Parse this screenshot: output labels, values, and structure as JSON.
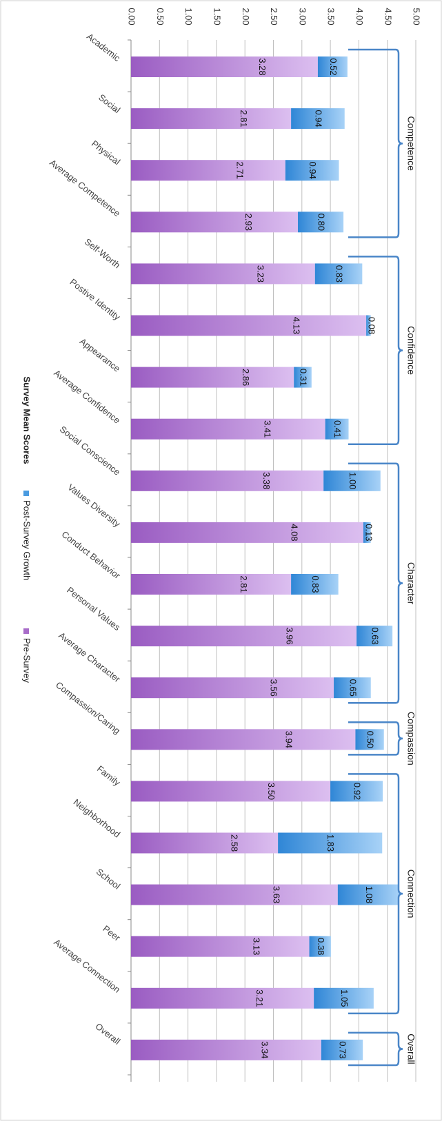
{
  "chart_data": {
    "type": "bar",
    "stacked": true,
    "orientation": "horizontal",
    "categories": [
      "Academic",
      "Social",
      "Physical",
      "Average Competence",
      "Self-Worth",
      "Postive Identity",
      "Appearance",
      "Average Confidence",
      "Social Conscience",
      "Values Diversity",
      "Conduct Behavior",
      "Personal Values",
      "Average Character",
      "Compassion/Caring",
      "Family",
      "Neighborhood",
      "School",
      "Peer",
      "Average Connection",
      "Overall"
    ],
    "series": [
      {
        "name": "Pre-Survey",
        "color": "#a86cc9",
        "values": [
          3.28,
          2.81,
          2.71,
          2.93,
          3.23,
          4.13,
          2.86,
          3.41,
          3.38,
          4.08,
          2.81,
          3.96,
          3.56,
          3.94,
          3.5,
          2.58,
          3.63,
          3.13,
          3.21,
          3.34
        ],
        "labels": [
          "3.28",
          "2.81",
          "2.71",
          "2.93",
          "3.23",
          "4.13",
          "2.86",
          "3.41",
          "3.38",
          "4.08",
          "2.81",
          "3.96",
          "3.56",
          "3.94",
          "3.50",
          "2.58",
          "3.63",
          "3.13",
          "3.21",
          "3.34"
        ]
      },
      {
        "name": "Post-Survey Growth",
        "color": "#4a9be0",
        "values": [
          0.52,
          0.94,
          0.94,
          0.8,
          0.83,
          0.08,
          0.31,
          0.41,
          1.0,
          0.13,
          0.83,
          0.63,
          0.65,
          0.5,
          0.92,
          1.83,
          1.08,
          0.38,
          1.05,
          0.73
        ],
        "labels": [
          "0.52",
          "0.94",
          "0.94",
          "0.80",
          "0.83",
          "0.08",
          "0.31",
          "0.41",
          "1.00",
          "0.13",
          "0.83",
          "0.63",
          "0.65",
          "0.50",
          "0.92",
          "1.83",
          "1.08",
          "0.38",
          "1.05",
          "0.73"
        ]
      }
    ],
    "axis": {
      "min": 0,
      "max": 5,
      "ticks": [
        "0.00",
        "0.50",
        "1.00",
        "1.50",
        "2.00",
        "2.50",
        "3.00",
        "3.50",
        "4.00",
        "4.50",
        "5.00"
      ]
    },
    "groups": [
      {
        "label": "Competence",
        "from": 0,
        "to": 3
      },
      {
        "label": "Confidence",
        "from": 4,
        "to": 7
      },
      {
        "label": "Character",
        "from": 8,
        "to": 12
      },
      {
        "label": "Compassion",
        "from": 13,
        "to": 13
      },
      {
        "label": "Connection",
        "from": 14,
        "to": 18
      },
      {
        "label": "Overall",
        "from": 19,
        "to": 19
      }
    ],
    "legend": {
      "title": "Survey Mean Scores",
      "placement": "bottom"
    },
    "grid": true,
    "rotation": "chart rotated 90 degrees clockwise"
  }
}
